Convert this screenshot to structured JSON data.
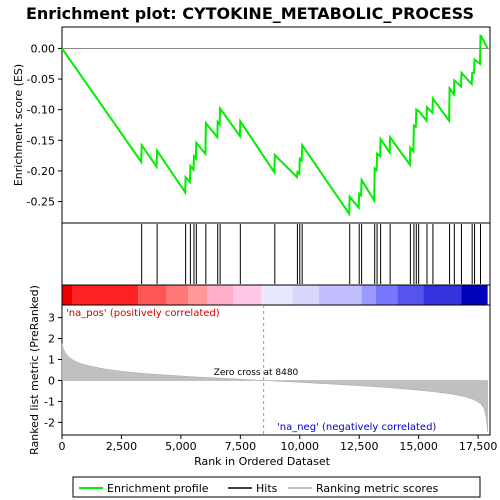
{
  "chart_data": {
    "type": "line",
    "title": "Enrichment plot: CYTOKINE_METABOLIC_PROCESS",
    "xlabel": "Rank in Ordered Dataset",
    "es_panel": {
      "ylabel": "Enrichment score (ES)",
      "ylim": [
        -0.285,
        0.035
      ],
      "yticks": [
        0.0,
        -0.05,
        -0.1,
        -0.15,
        -0.2,
        -0.25
      ],
      "ytick_labels": [
        "0.00",
        "-0.05",
        "-0.10",
        "-0.15",
        "-0.20",
        "-0.25"
      ]
    },
    "metric_panel": {
      "ylabel": "Ranked list metric (PreRanked)",
      "ylim": [
        -2.6,
        3.6
      ],
      "yticks": [
        3,
        2,
        1,
        0,
        -1,
        -2
      ],
      "ytick_labels": [
        "3",
        "2",
        "1",
        "0",
        "-1",
        "-2"
      ]
    },
    "xlim": [
      0,
      18000
    ],
    "xticks": [
      0,
      2500,
      5000,
      7500,
      10000,
      12500,
      15000,
      17500
    ],
    "xtick_labels": [
      "0",
      "2,500",
      "5,000",
      "7,500",
      "10,000",
      "12,500",
      "15,000",
      "17,500"
    ],
    "zero_cross_label": "Zero cross at 8480",
    "zero_cross": 8480,
    "pos_label": "'na_pos' (positively correlated)",
    "neg_label": "'na_neg' (negatively correlated)",
    "legend": {
      "enrichment_profile": "Enrichment profile",
      "hits": "Hits",
      "ranking_metric": "Ranking metric scores"
    },
    "colors": {
      "profile": "#00ee00",
      "hit": "#000000",
      "metric": "#c0c0c0",
      "pos": "#ff0000",
      "neg": "#0000ff"
    },
    "total_genes": 17900,
    "hits": [
      3350,
      4000,
      5200,
      5400,
      5550,
      5650,
      6050,
      6550,
      6650,
      7500,
      8950,
      9900,
      10000,
      10100,
      12100,
      12500,
      12600,
      13150,
      13250,
      13400,
      13800,
      14650,
      14800,
      14900,
      15000,
      15350,
      15600,
      16300,
      16500,
      16800,
      17250,
      17350,
      17600
    ],
    "enrichment_profile": [
      {
        "x": 0,
        "y": 0.0
      },
      {
        "x": 3330,
        "y": -0.185
      },
      {
        "x": 3350,
        "y": -0.158
      },
      {
        "x": 3980,
        "y": -0.193
      },
      {
        "x": 4000,
        "y": -0.167
      },
      {
        "x": 5180,
        "y": -0.235
      },
      {
        "x": 5200,
        "y": -0.21
      },
      {
        "x": 5380,
        "y": -0.218
      },
      {
        "x": 5400,
        "y": -0.192
      },
      {
        "x": 5530,
        "y": -0.198
      },
      {
        "x": 5550,
        "y": -0.176
      },
      {
        "x": 5630,
        "y": -0.18
      },
      {
        "x": 5650,
        "y": -0.154
      },
      {
        "x": 6030,
        "y": -0.172
      },
      {
        "x": 6050,
        "y": -0.122
      },
      {
        "x": 6530,
        "y": -0.145
      },
      {
        "x": 6550,
        "y": -0.12
      },
      {
        "x": 6630,
        "y": -0.124
      },
      {
        "x": 6650,
        "y": -0.098
      },
      {
        "x": 7480,
        "y": -0.143
      },
      {
        "x": 7500,
        "y": -0.119
      },
      {
        "x": 8930,
        "y": -0.202
      },
      {
        "x": 8950,
        "y": -0.174
      },
      {
        "x": 9880,
        "y": -0.21
      },
      {
        "x": 9900,
        "y": -0.202
      },
      {
        "x": 9980,
        "y": -0.205
      },
      {
        "x": 10000,
        "y": -0.18
      },
      {
        "x": 10080,
        "y": -0.183
      },
      {
        "x": 10100,
        "y": -0.158
      },
      {
        "x": 12080,
        "y": -0.27
      },
      {
        "x": 12100,
        "y": -0.242
      },
      {
        "x": 12480,
        "y": -0.26
      },
      {
        "x": 12500,
        "y": -0.237
      },
      {
        "x": 12580,
        "y": -0.24
      },
      {
        "x": 12600,
        "y": -0.215
      },
      {
        "x": 13130,
        "y": -0.248
      },
      {
        "x": 13150,
        "y": -0.196
      },
      {
        "x": 13230,
        "y": -0.199
      },
      {
        "x": 13250,
        "y": -0.172
      },
      {
        "x": 13380,
        "y": -0.176
      },
      {
        "x": 13400,
        "y": -0.148
      },
      {
        "x": 13780,
        "y": -0.17
      },
      {
        "x": 13800,
        "y": -0.145
      },
      {
        "x": 14630,
        "y": -0.19
      },
      {
        "x": 14650,
        "y": -0.162
      },
      {
        "x": 14780,
        "y": -0.168
      },
      {
        "x": 14800,
        "y": -0.126
      },
      {
        "x": 14880,
        "y": -0.128
      },
      {
        "x": 14900,
        "y": -0.1
      },
      {
        "x": 14980,
        "y": -0.102
      },
      {
        "x": 15000,
        "y": -0.102
      },
      {
        "x": 15330,
        "y": -0.118
      },
      {
        "x": 15350,
        "y": -0.096
      },
      {
        "x": 15580,
        "y": -0.105
      },
      {
        "x": 15600,
        "y": -0.082
      },
      {
        "x": 16280,
        "y": -0.118
      },
      {
        "x": 16300,
        "y": -0.065
      },
      {
        "x": 16480,
        "y": -0.075
      },
      {
        "x": 16500,
        "y": -0.052
      },
      {
        "x": 16780,
        "y": -0.062
      },
      {
        "x": 16800,
        "y": -0.04
      },
      {
        "x": 17230,
        "y": -0.058
      },
      {
        "x": 17250,
        "y": -0.04
      },
      {
        "x": 17330,
        "y": -0.04
      },
      {
        "x": 17350,
        "y": -0.018
      },
      {
        "x": 17580,
        "y": -0.025
      },
      {
        "x": 17600,
        "y": 0.022
      },
      {
        "x": 17900,
        "y": 0.0
      }
    ],
    "ranking_metric": [
      {
        "x": 0,
        "y": 1.75
      },
      {
        "x": 60,
        "y": 1.5
      },
      {
        "x": 150,
        "y": 1.3
      },
      {
        "x": 300,
        "y": 1.1
      },
      {
        "x": 500,
        "y": 0.95
      },
      {
        "x": 800,
        "y": 0.8
      },
      {
        "x": 1200,
        "y": 0.68
      },
      {
        "x": 1800,
        "y": 0.55
      },
      {
        "x": 2500,
        "y": 0.44
      },
      {
        "x": 3500,
        "y": 0.33
      },
      {
        "x": 4500,
        "y": 0.25
      },
      {
        "x": 5500,
        "y": 0.18
      },
      {
        "x": 6500,
        "y": 0.12
      },
      {
        "x": 7500,
        "y": 0.06
      },
      {
        "x": 8480,
        "y": 0.0
      },
      {
        "x": 9500,
        "y": -0.06
      },
      {
        "x": 10500,
        "y": -0.12
      },
      {
        "x": 11500,
        "y": -0.18
      },
      {
        "x": 12500,
        "y": -0.25
      },
      {
        "x": 13500,
        "y": -0.32
      },
      {
        "x": 14500,
        "y": -0.41
      },
      {
        "x": 15500,
        "y": -0.52
      },
      {
        "x": 16300,
        "y": -0.63
      },
      {
        "x": 16900,
        "y": -0.76
      },
      {
        "x": 17300,
        "y": -0.9
      },
      {
        "x": 17600,
        "y": -1.1
      },
      {
        "x": 17750,
        "y": -1.35
      },
      {
        "x": 17850,
        "y": -1.8
      },
      {
        "x": 17900,
        "y": -2.45
      }
    ],
    "color_band": [
      {
        "from": 0,
        "to": 450,
        "color": "#ee0000"
      },
      {
        "from": 450,
        "to": 3200,
        "color": "#ff2222"
      },
      {
        "from": 3200,
        "to": 4400,
        "color": "#ff5555"
      },
      {
        "from": 4400,
        "to": 5300,
        "color": "#ff7777"
      },
      {
        "from": 5300,
        "to": 6100,
        "color": "#ff9999"
      },
      {
        "from": 6100,
        "to": 7200,
        "color": "#ffb0c8"
      },
      {
        "from": 7200,
        "to": 8400,
        "color": "#ffc8e8"
      },
      {
        "from": 8400,
        "to": 9700,
        "color": "#e8e8ff"
      },
      {
        "from": 9700,
        "to": 10800,
        "color": "#d8d8ff"
      },
      {
        "from": 10800,
        "to": 12600,
        "color": "#c0c0ff"
      },
      {
        "from": 12600,
        "to": 13200,
        "color": "#9999ff"
      },
      {
        "from": 13200,
        "to": 14100,
        "color": "#7777ff"
      },
      {
        "from": 14100,
        "to": 15200,
        "color": "#5555ee"
      },
      {
        "from": 15200,
        "to": 16800,
        "color": "#3333dd"
      },
      {
        "from": 16800,
        "to": 17900,
        "color": "#0000bb"
      }
    ]
  }
}
